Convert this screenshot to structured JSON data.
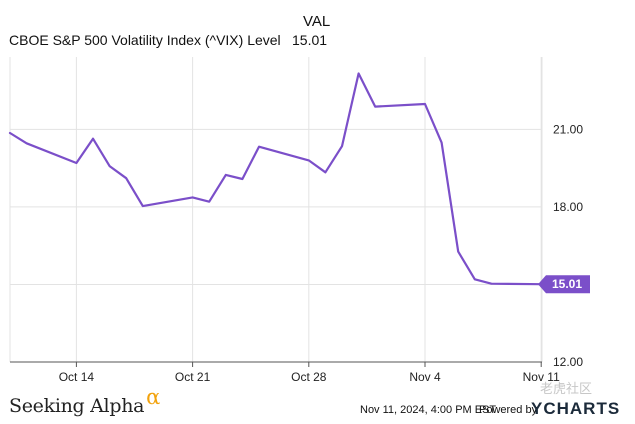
{
  "header": {
    "column_label": "VAL",
    "series_name": "CBOE S&P 500 Volatility Index (^VIX) Level",
    "series_value": "15.01"
  },
  "colors": {
    "line": "#7b4fc9",
    "grid": "#e3e3e3",
    "axis": "#555555"
  },
  "chart_data": {
    "type": "line",
    "title": "",
    "xlabel": "",
    "ylabel": "",
    "x_ticks": [
      "Oct 14",
      "Oct 21",
      "Oct 28",
      "Nov 4",
      "Nov 11"
    ],
    "y_ticks": [
      12.0,
      15.0,
      18.0,
      21.0
    ],
    "ylim": [
      12.0,
      23.8
    ],
    "x": [
      "Oct 10",
      "Oct 11",
      "Oct 14",
      "Oct 15",
      "Oct 16",
      "Oct 17",
      "Oct 18",
      "Oct 21",
      "Oct 22",
      "Oct 23",
      "Oct 24",
      "Oct 25",
      "Oct 28",
      "Oct 29",
      "Oct 30",
      "Oct 31",
      "Nov 1",
      "Nov 4",
      "Nov 5",
      "Nov 6",
      "Nov 7",
      "Nov 8",
      "Nov 11"
    ],
    "series": [
      {
        "name": "CBOE S&P 500 Volatility Index (^VIX) Level",
        "values": [
          20.86,
          20.46,
          19.7,
          20.64,
          19.58,
          19.11,
          18.03,
          18.37,
          18.2,
          19.24,
          19.08,
          20.33,
          19.8,
          19.34,
          20.35,
          23.16,
          21.88,
          21.98,
          20.49,
          16.27,
          15.2,
          15.03,
          15.01
        ],
        "last_value_label": "15.01"
      }
    ],
    "grid": true,
    "legend": "top-left"
  },
  "footer": {
    "brand": "Seeking Alpha",
    "brand_mark": "α",
    "timestamp": "Nov 11, 2024, 4:00 PM EST",
    "powered_by": "Powered by",
    "logo": "YCHARTS",
    "watermark": "老虎社区"
  }
}
